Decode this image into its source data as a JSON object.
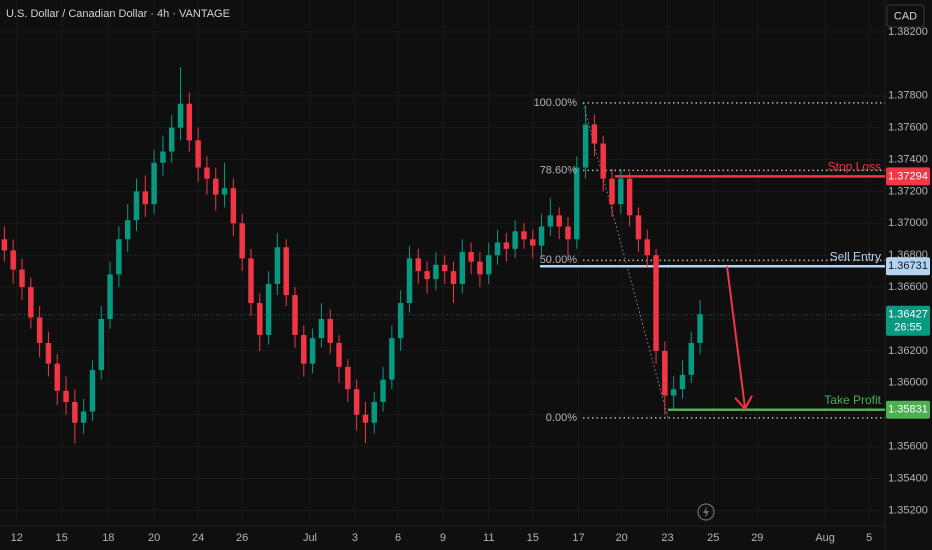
{
  "chart_data": {
    "type": "candlestick",
    "title": "U.S. Dollar / Canadian Dollar · 4h · VANTAGE",
    "currency": "CAD",
    "up_color": "#089981",
    "down_color": "#f23645",
    "grid": true,
    "grid_color": "#1a1a1a",
    "open": [
      1.369,
      1.3683,
      1.3671,
      1.366,
      1.3641,
      1.3625,
      1.3612,
      1.3595,
      1.3588,
      1.3575,
      1.3582,
      1.3608,
      1.364,
      1.3668,
      1.369,
      1.3702,
      1.372,
      1.3712,
      1.3738,
      1.3745,
      1.376,
      1.3775,
      1.3752,
      1.3735,
      1.3728,
      1.3718,
      1.3722,
      1.37,
      1.3678,
      1.365,
      1.363,
      1.3662,
      1.3685,
      1.3655,
      1.363,
      1.3612,
      1.3628,
      1.364,
      1.3625,
      1.361,
      1.3596,
      1.358,
      1.3575,
      1.3588,
      1.3602,
      1.3628,
      1.365,
      1.3678,
      1.367,
      1.3665,
      1.3674,
      1.367,
      1.3662,
      1.3682,
      1.3676,
      1.3668,
      1.368,
      1.3688,
      1.3684,
      1.3695,
      1.369,
      1.3686,
      1.3698,
      1.3705,
      1.3698,
      1.369,
      1.3735,
      1.3762,
      1.375,
      1.3728,
      1.3712,
      1.3728,
      1.3705,
      1.369,
      1.368,
      1.362,
      1.3592,
      1.3596,
      1.3605,
      1.3625
    ],
    "high": [
      1.3698,
      1.369,
      1.3678,
      1.3666,
      1.3648,
      1.3632,
      1.3618,
      1.3604,
      1.3596,
      1.359,
      1.3614,
      1.3648,
      1.3676,
      1.3698,
      1.3712,
      1.3728,
      1.373,
      1.3746,
      1.3755,
      1.3768,
      1.3798,
      1.3782,
      1.376,
      1.3742,
      1.3735,
      1.3738,
      1.3728,
      1.3706,
      1.3684,
      1.3656,
      1.367,
      1.3694,
      1.369,
      1.366,
      1.3636,
      1.3634,
      1.365,
      1.3646,
      1.363,
      1.3615,
      1.3602,
      1.3588,
      1.3594,
      1.361,
      1.3636,
      1.3658,
      1.3686,
      1.3684,
      1.3676,
      1.3682,
      1.368,
      1.3676,
      1.369,
      1.3688,
      1.3682,
      1.3688,
      1.3696,
      1.3694,
      1.3702,
      1.37,
      1.3696,
      1.3706,
      1.3716,
      1.371,
      1.3704,
      1.3742,
      1.3774,
      1.3768,
      1.3755,
      1.3734,
      1.3734,
      1.3732,
      1.371,
      1.3696,
      1.3684,
      1.3626,
      1.3604,
      1.3614,
      1.3632,
      1.3652
    ],
    "low": [
      1.3676,
      1.3662,
      1.3652,
      1.3634,
      1.3616,
      1.3604,
      1.3586,
      1.358,
      1.3562,
      1.3568,
      1.3576,
      1.3602,
      1.3634,
      1.366,
      1.3682,
      1.3695,
      1.3704,
      1.3706,
      1.373,
      1.3738,
      1.3752,
      1.3745,
      1.3726,
      1.3718,
      1.3708,
      1.371,
      1.3692,
      1.367,
      1.3642,
      1.362,
      1.3624,
      1.3655,
      1.3648,
      1.3622,
      1.3604,
      1.3606,
      1.3622,
      1.3618,
      1.36,
      1.3588,
      1.357,
      1.3562,
      1.3568,
      1.3582,
      1.3596,
      1.362,
      1.3644,
      1.3662,
      1.3656,
      1.3658,
      1.3662,
      1.365,
      1.3656,
      1.3668,
      1.366,
      1.3662,
      1.3674,
      1.3676,
      1.3678,
      1.3684,
      1.3678,
      1.368,
      1.3692,
      1.369,
      1.3676,
      1.3684,
      1.3728,
      1.3742,
      1.372,
      1.3704,
      1.3706,
      1.3698,
      1.3682,
      1.3672,
      1.3612,
      1.358,
      1.3584,
      1.359,
      1.36,
      1.3618
    ],
    "close": [
      1.3683,
      1.3671,
      1.366,
      1.3641,
      1.3625,
      1.3612,
      1.3595,
      1.3588,
      1.3575,
      1.3582,
      1.3608,
      1.364,
      1.3668,
      1.369,
      1.3702,
      1.372,
      1.3712,
      1.3738,
      1.3745,
      1.376,
      1.3775,
      1.3752,
      1.3735,
      1.3728,
      1.3718,
      1.3722,
      1.37,
      1.3678,
      1.365,
      1.363,
      1.3662,
      1.3685,
      1.3655,
      1.363,
      1.3612,
      1.3628,
      1.364,
      1.3625,
      1.361,
      1.3596,
      1.358,
      1.3575,
      1.3588,
      1.3602,
      1.3628,
      1.365,
      1.3678,
      1.367,
      1.3665,
      1.3674,
      1.367,
      1.3662,
      1.3682,
      1.3676,
      1.3668,
      1.368,
      1.3688,
      1.3684,
      1.3695,
      1.369,
      1.3686,
      1.3698,
      1.3705,
      1.3698,
      1.369,
      1.3735,
      1.3762,
      1.375,
      1.3728,
      1.3712,
      1.3728,
      1.3705,
      1.369,
      1.368,
      1.362,
      1.3592,
      1.3596,
      1.3605,
      1.3625,
      1.3643
    ],
    "xlim": [
      -0.5,
      100
    ],
    "xticks": [
      {
        "value": 1.4,
        "label": "12"
      },
      {
        "value": 6.5,
        "label": "15"
      },
      {
        "value": 11.8,
        "label": "18"
      },
      {
        "value": 17,
        "label": "20"
      },
      {
        "value": 22,
        "label": "24"
      },
      {
        "value": 27,
        "label": "26"
      },
      {
        "value": 34.7,
        "label": "Jul"
      },
      {
        "value": 39.8,
        "label": "3"
      },
      {
        "value": 44.7,
        "label": "6"
      },
      {
        "value": 49.8,
        "label": "9"
      },
      {
        "value": 55,
        "label": "11"
      },
      {
        "value": 60,
        "label": "15"
      },
      {
        "value": 65.2,
        "label": "17"
      },
      {
        "value": 70.1,
        "label": "20"
      },
      {
        "value": 75.3,
        "label": "23"
      },
      {
        "value": 80.5,
        "label": "25"
      },
      {
        "value": 85.5,
        "label": "29"
      },
      {
        "value": 93.2,
        "label": "Aug"
      },
      {
        "value": 98.2,
        "label": "5"
      }
    ],
    "ylim": [
      1.3514,
      1.384
    ],
    "yticks": [
      {
        "value": 1.352,
        "label": "1.35200"
      },
      {
        "value": 1.354,
        "label": "1.35400"
      },
      {
        "value": 1.356,
        "label": "1.35600"
      },
      {
        "value": 1.358,
        "label": "1.35800"
      },
      {
        "value": 1.36,
        "label": "1.36000"
      },
      {
        "value": 1.362,
        "label": "1.36200"
      },
      {
        "value": 1.364,
        "label": "1.36400"
      },
      {
        "value": 1.366,
        "label": "1.36600"
      },
      {
        "value": 1.368,
        "label": "1.36800"
      },
      {
        "value": 1.37,
        "label": "1.37000"
      },
      {
        "value": 1.372,
        "label": "1.37200"
      },
      {
        "value": 1.374,
        "label": "1.37400"
      },
      {
        "value": 1.376,
        "label": "1.37600"
      },
      {
        "value": 1.378,
        "label": "1.37800"
      },
      {
        "value": 1.382,
        "label": "1.38200"
      }
    ],
    "fib_levels": [
      {
        "value": 100,
        "label": "100.00%",
        "price": 1.37755
      },
      {
        "value": 78.6,
        "label": "78.60%",
        "price": 1.37332
      },
      {
        "value": 50,
        "label": "50.00%",
        "price": 1.36768
      },
      {
        "value": 0,
        "label": "0.00%",
        "price": 1.3578
      }
    ],
    "levels": [
      {
        "name": "Stop Loss",
        "value": 1.37294,
        "color": "#f23645"
      },
      {
        "name": "Sell Entry",
        "value": 1.36731,
        "color": "#b3d4f0"
      },
      {
        "name": "Take Profit",
        "value": 1.35831,
        "color": "#4caf50"
      }
    ],
    "last_price": {
      "value": 1.36427,
      "countdown": "26:55",
      "color": "#089981"
    }
  }
}
